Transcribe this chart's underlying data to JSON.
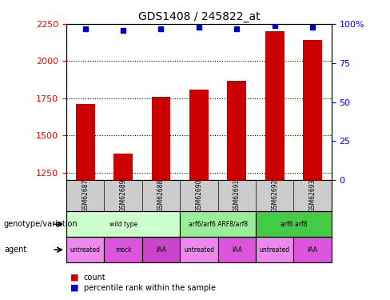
{
  "title": "GDS1408 / 245822_at",
  "samples": [
    "GSM62687",
    "GSM62689",
    "GSM62688",
    "GSM62690",
    "GSM62691",
    "GSM62692",
    "GSM62693"
  ],
  "bar_values": [
    1710,
    1380,
    1760,
    1810,
    1870,
    2200,
    2140
  ],
  "dot_values": [
    97,
    96,
    97,
    98,
    97,
    99,
    98
  ],
  "ylim_left": [
    1200,
    2250
  ],
  "ylim_right": [
    0,
    100
  ],
  "yticks_left": [
    1250,
    1500,
    1750,
    2000,
    2250
  ],
  "yticks_right": [
    0,
    25,
    50,
    75,
    100
  ],
  "bar_color": "#cc0000",
  "dot_color": "#0000cc",
  "genotype_groups": [
    {
      "label": "wild type",
      "span": [
        0,
        3
      ],
      "color": "#ccffcc"
    },
    {
      "label": "arf6/arf6 ARF8/arf8",
      "span": [
        3,
        5
      ],
      "color": "#99ee99"
    },
    {
      "label": "arf6 arf8",
      "span": [
        5,
        7
      ],
      "color": "#44cc44"
    }
  ],
  "agent_groups": [
    {
      "label": "untreated",
      "span": [
        0,
        1
      ],
      "color": "#ee88ee"
    },
    {
      "label": "mock",
      "span": [
        1,
        2
      ],
      "color": "#dd55dd"
    },
    {
      "label": "IAA",
      "span": [
        2,
        3
      ],
      "color": "#cc44cc"
    },
    {
      "label": "untreated",
      "span": [
        3,
        4
      ],
      "color": "#ee88ee"
    },
    {
      "label": "IAA",
      "span": [
        4,
        5
      ],
      "color": "#dd55dd"
    },
    {
      "label": "untreated",
      "span": [
        5,
        6
      ],
      "color": "#ee88ee"
    },
    {
      "label": "IAA",
      "span": [
        6,
        7
      ],
      "color": "#dd55dd"
    }
  ],
  "legend_count_color": "#cc0000",
  "legend_dot_color": "#0000cc",
  "genotype_label": "genotype/variation",
  "agent_label": "agent",
  "background_color": "#ffffff",
  "sample_bg_color": "#cccccc"
}
